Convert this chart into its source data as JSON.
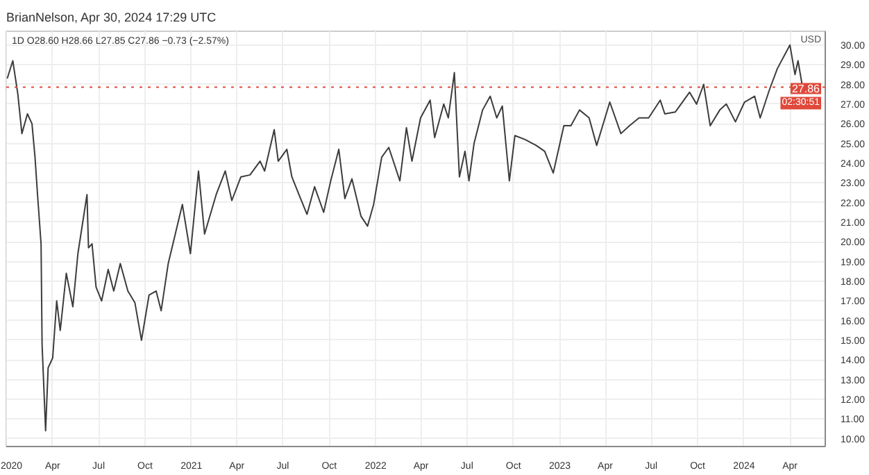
{
  "chart_data": {
    "type": "line",
    "title": "1D  O28.60  H28.66  L27.85  C27.86  −0.73 (−2.57%)",
    "subtitle": "BrianNelson, Apr 30, 2024 17:29 UTC",
    "x": [
      "2020-01-02",
      "2020-01-13",
      "2020-01-23",
      "2020-01-31",
      "2020-02-11",
      "2020-02-20",
      "2020-02-26",
      "2020-03-02",
      "2020-03-09",
      "2020-03-11",
      "2020-03-18",
      "2020-03-23",
      "2020-04-01",
      "2020-04-09",
      "2020-04-16",
      "2020-04-28",
      "2020-05-11",
      "2020-05-21",
      "2020-06-08",
      "2020-06-11",
      "2020-06-18",
      "2020-06-26",
      "2020-07-07",
      "2020-07-20",
      "2020-07-31",
      "2020-08-13",
      "2020-08-28",
      "2020-09-11",
      "2020-09-24",
      "2020-10-09",
      "2020-10-23",
      "2020-11-02",
      "2020-11-16",
      "2020-11-30",
      "2020-12-14",
      "2020-12-30",
      "2021-01-15",
      "2021-01-27",
      "2021-02-19",
      "2021-03-09",
      "2021-03-22",
      "2021-04-09",
      "2021-04-27",
      "2021-05-17",
      "2021-05-26",
      "2021-06-14",
      "2021-06-22",
      "2021-07-09",
      "2021-07-19",
      "2021-08-02",
      "2021-08-18",
      "2021-09-02",
      "2021-09-20",
      "2021-10-04",
      "2021-10-20",
      "2021-11-01",
      "2021-11-15",
      "2021-12-03",
      "2021-12-16",
      "2021-12-28",
      "2022-01-13",
      "2022-01-27",
      "2022-02-18",
      "2022-03-03",
      "2022-03-14",
      "2022-03-31",
      "2022-04-19",
      "2022-04-28",
      "2022-05-16",
      "2022-05-25",
      "2022-06-06",
      "2022-06-16",
      "2022-06-27",
      "2022-07-05",
      "2022-07-15",
      "2022-08-01",
      "2022-08-16",
      "2022-08-29",
      "2022-09-09",
      "2022-09-23",
      "2022-10-04",
      "2022-10-24",
      "2022-11-15",
      "2022-12-02",
      "2022-12-19",
      "2023-01-09",
      "2023-01-23",
      "2023-02-09",
      "2023-02-28",
      "2023-03-15",
      "2023-04-10",
      "2023-05-02",
      "2023-05-19",
      "2023-06-07",
      "2023-06-26",
      "2023-07-19",
      "2023-07-28",
      "2023-08-18",
      "2023-09-15",
      "2023-09-29",
      "2023-10-13",
      "2023-10-26",
      "2023-11-14",
      "2023-11-27",
      "2023-12-15",
      "2024-01-02",
      "2024-01-22",
      "2024-02-02",
      "2024-02-20",
      "2024-03-07",
      "2024-04-01",
      "2024-04-11",
      "2024-04-17",
      "2024-04-25",
      "2024-04-30"
    ],
    "series": [
      {
        "color": "#3c3c3c",
        "values": [
          28.3,
          29.2,
          27.5,
          25.5,
          26.5,
          26.0,
          24.3,
          22.4,
          19.9,
          14.8,
          10.4,
          13.6,
          14.1,
          17.0,
          15.5,
          18.4,
          16.7,
          19.4,
          22.4,
          19.7,
          19.9,
          17.7,
          17.0,
          18.6,
          17.5,
          18.9,
          17.5,
          16.9,
          15.0,
          17.3,
          17.5,
          16.5,
          18.9,
          20.4,
          21.9,
          19.4,
          23.6,
          20.4,
          22.4,
          23.6,
          22.1,
          23.3,
          23.4,
          24.1,
          23.6,
          25.7,
          24.1,
          24.7,
          23.3,
          22.4,
          21.4,
          22.8,
          21.5,
          23.1,
          24.7,
          22.2,
          23.2,
          21.3,
          20.8,
          21.9,
          24.3,
          24.8,
          23.1,
          25.8,
          24.1,
          26.3,
          27.2,
          25.3,
          27.0,
          26.3,
          28.6,
          23.3,
          24.6,
          23.1,
          25.0,
          26.7,
          27.4,
          26.3,
          26.9,
          23.1,
          25.4,
          25.2,
          24.9,
          24.6,
          23.5,
          25.9,
          25.9,
          26.7,
          26.3,
          24.9,
          27.1,
          25.5,
          25.9,
          26.3,
          26.3,
          27.2,
          26.5,
          26.6,
          27.6,
          27.0,
          28.0,
          25.9,
          26.7,
          27.0,
          26.1,
          27.1,
          27.4,
          26.3,
          27.7,
          28.8,
          30.0,
          28.5,
          29.2,
          28.0,
          27.86
        ]
      }
    ],
    "xlim": [
      "2019-12-31",
      "2024-06-10"
    ],
    "xticks": [
      {
        "value": "2020-01-01",
        "label": "2020"
      },
      {
        "value": "2020-04-01",
        "label": "Apr"
      },
      {
        "value": "2020-07-01",
        "label": "Jul"
      },
      {
        "value": "2020-10-01",
        "label": "Oct"
      },
      {
        "value": "2021-01-01",
        "label": "2021"
      },
      {
        "value": "2021-04-01",
        "label": "Apr"
      },
      {
        "value": "2021-07-01",
        "label": "Jul"
      },
      {
        "value": "2021-10-01",
        "label": "Oct"
      },
      {
        "value": "2022-01-01",
        "label": "2022"
      },
      {
        "value": "2022-04-01",
        "label": "Apr"
      },
      {
        "value": "2022-07-01",
        "label": "Jul"
      },
      {
        "value": "2022-10-01",
        "label": "Oct"
      },
      {
        "value": "2023-01-01",
        "label": "2023"
      },
      {
        "value": "2023-04-01",
        "label": "Apr"
      },
      {
        "value": "2023-07-01",
        "label": "Jul"
      },
      {
        "value": "2023-10-01",
        "label": "Oct"
      },
      {
        "value": "2024-01-01",
        "label": "2024"
      },
      {
        "value": "2024-04-01",
        "label": "Apr"
      }
    ],
    "ylim": [
      9.6,
      30.7
    ],
    "yticks": [
      {
        "value": 10,
        "label": "10.00"
      },
      {
        "value": 11,
        "label": "11.00"
      },
      {
        "value": 12,
        "label": "12.00"
      },
      {
        "value": 13,
        "label": "13.00"
      },
      {
        "value": 14,
        "label": "14.00"
      },
      {
        "value": 15,
        "label": "15.00"
      },
      {
        "value": 16,
        "label": "16.00"
      },
      {
        "value": 17,
        "label": "17.00"
      },
      {
        "value": 18,
        "label": "18.00"
      },
      {
        "value": 19,
        "label": "19.00"
      },
      {
        "value": 20,
        "label": "20.00"
      },
      {
        "value": 21,
        "label": "21.00"
      },
      {
        "value": 22,
        "label": "22.00"
      },
      {
        "value": 23,
        "label": "23.00"
      },
      {
        "value": 24,
        "label": "24.00"
      },
      {
        "value": 25,
        "label": "25.00"
      },
      {
        "value": 26,
        "label": "26.00"
      },
      {
        "value": 27,
        "label": "27.00"
      },
      {
        "value": 28,
        "label": "28.00"
      },
      {
        "value": 29,
        "label": "29.00"
      },
      {
        "value": 30,
        "label": "30.00"
      }
    ],
    "ref_lines": [
      {
        "axis": "y",
        "value": 27.86,
        "label": "27.86",
        "color": "#e0483a",
        "line_style": "dotted"
      }
    ],
    "annotations": [
      "02:30:51",
      "USD"
    ],
    "grid": true,
    "line_style": "solid",
    "marker": "none"
  }
}
